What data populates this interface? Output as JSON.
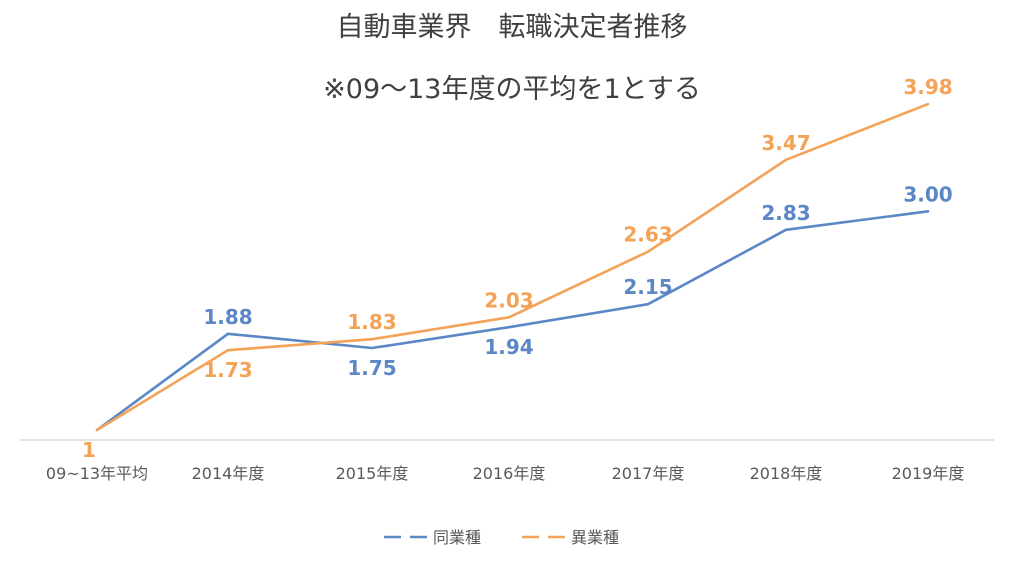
{
  "chart_data": {
    "type": "line",
    "title": "自動車業界　転職決定者推移",
    "subtitle": "※09～13年度の平均を1とする",
    "categories": [
      "09~13年平均",
      "2014年度",
      "2015年度",
      "2016年度",
      "2017年度",
      "2018年度",
      "2019年度"
    ],
    "series": [
      {
        "name": "同業種",
        "color": "#5b87c6",
        "values": [
          1,
          1.88,
          1.75,
          1.94,
          2.15,
          2.83,
          3.0
        ],
        "labels": [
          "",
          "1.88",
          "1.75",
          "1.94",
          "2.15",
          "2.83",
          "3.00"
        ]
      },
      {
        "name": "異業種",
        "color": "#f3a256",
        "values": [
          1,
          1.73,
          1.83,
          2.03,
          2.63,
          3.47,
          3.98
        ],
        "labels": [
          "1",
          "1.73",
          "1.83",
          "2.03",
          "2.63",
          "3.47",
          "3.98"
        ]
      }
    ],
    "xlabel": "",
    "ylabel": "",
    "ylim": [
      1,
      4.2
    ],
    "grid": false,
    "legend": "bottom"
  }
}
